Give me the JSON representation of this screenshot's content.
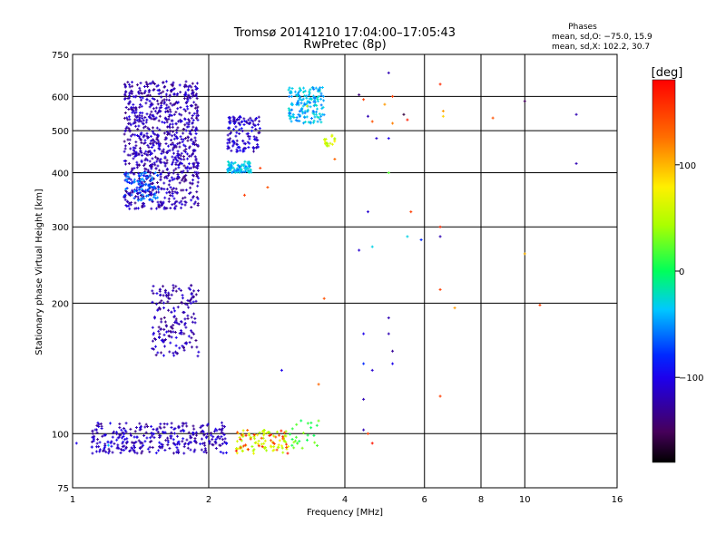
{
  "chart_data": {
    "type": "scatter",
    "title": "Tromsø 20141210 17:04:00–17:05:43",
    "subtitle": "RwPretec (8p)",
    "xlabel": "Frequency [MHz]",
    "ylabel": "Stationary phase Virtual Height [km]",
    "x_scale": "log",
    "y_scale": "log",
    "xlim": [
      1,
      16
    ],
    "ylim": [
      75,
      750
    ],
    "x_ticks": [
      1,
      2,
      4,
      6,
      8,
      10,
      16
    ],
    "y_ticks": [
      75,
      100,
      200,
      300,
      400,
      500,
      600,
      750
    ],
    "grid": true,
    "stats": {
      "title": "Phases",
      "line_o": "mean, sd,O: −75.0, 15.9",
      "line_x": "mean, sd,X: 102.2, 30.7"
    },
    "colorbar": {
      "label": "[deg]",
      "min": -180,
      "max": 180,
      "ticks": [
        100,
        0,
        -100
      ]
    },
    "clusters": [
      {
        "x": [
          1.3,
          1.9
        ],
        "y": [
          330,
          650
        ],
        "phase": -120,
        "n": 900
      },
      {
        "x": [
          1.3,
          1.55
        ],
        "y": [
          345,
          400
        ],
        "phase": -65,
        "n": 80
      },
      {
        "x": [
          2.2,
          2.6
        ],
        "y": [
          445,
          540
        ],
        "phase": -110,
        "n": 130
      },
      {
        "x": [
          2.2,
          2.5
        ],
        "y": [
          400,
          425
        ],
        "phase": -40,
        "n": 80
      },
      {
        "x": [
          3.0,
          3.6
        ],
        "y": [
          520,
          630
        ],
        "phase": -40,
        "n": 160
      },
      {
        "x": [
          3.6,
          3.8
        ],
        "y": [
          460,
          490
        ],
        "phase": 60,
        "n": 20
      },
      {
        "x": [
          1.5,
          1.9
        ],
        "y": [
          150,
          220
        ],
        "phase": -120,
        "n": 180
      },
      {
        "x": [
          1.1,
          2.2
        ],
        "y": [
          90,
          106
        ],
        "phase": -115,
        "n": 320
      },
      {
        "x": [
          2.3,
          3.0
        ],
        "y": [
          90,
          102
        ],
        "phase": 60,
        "n": 80
      },
      {
        "x": [
          2.3,
          3.0
        ],
        "y": [
          90,
          102
        ],
        "phase": 150,
        "n": 30
      },
      {
        "x": [
          3.0,
          3.5
        ],
        "y": [
          92,
          108
        ],
        "phase": 20,
        "n": 25
      }
    ],
    "points": [
      {
        "x": 4.3,
        "y": 605,
        "phase": -140
      },
      {
        "x": 4.4,
        "y": 590,
        "phase": 150
      },
      {
        "x": 4.5,
        "y": 540,
        "phase": -120
      },
      {
        "x": 4.6,
        "y": 525,
        "phase": 140
      },
      {
        "x": 4.7,
        "y": 480,
        "phase": -110
      },
      {
        "x": 4.9,
        "y": 575,
        "phase": 110
      },
      {
        "x": 5.0,
        "y": 680,
        "phase": -120
      },
      {
        "x": 5.0,
        "y": 480,
        "phase": -100
      },
      {
        "x": 5.0,
        "y": 400,
        "phase": 20
      },
      {
        "x": 5.1,
        "y": 600,
        "phase": 150
      },
      {
        "x": 5.1,
        "y": 520,
        "phase": 120
      },
      {
        "x": 5.4,
        "y": 545,
        "phase": -160
      },
      {
        "x": 5.5,
        "y": 530,
        "phase": 165
      },
      {
        "x": 6.5,
        "y": 640,
        "phase": 160
      },
      {
        "x": 6.6,
        "y": 555,
        "phase": 110
      },
      {
        "x": 6.6,
        "y": 540,
        "phase": 90
      },
      {
        "x": 8.5,
        "y": 535,
        "phase": 140
      },
      {
        "x": 10.0,
        "y": 585,
        "phase": -150
      },
      {
        "x": 13.0,
        "y": 545,
        "phase": -120
      },
      {
        "x": 13.0,
        "y": 420,
        "phase": -120
      },
      {
        "x": 3.8,
        "y": 430,
        "phase": 130
      },
      {
        "x": 4.5,
        "y": 325,
        "phase": -110
      },
      {
        "x": 4.3,
        "y": 265,
        "phase": -110
      },
      {
        "x": 4.6,
        "y": 270,
        "phase": -30
      },
      {
        "x": 5.6,
        "y": 325,
        "phase": 150
      },
      {
        "x": 5.5,
        "y": 285,
        "phase": -30
      },
      {
        "x": 5.9,
        "y": 280,
        "phase": -80
      },
      {
        "x": 6.5,
        "y": 300,
        "phase": 160
      },
      {
        "x": 6.5,
        "y": 285,
        "phase": -120
      },
      {
        "x": 6.5,
        "y": 215,
        "phase": 150
      },
      {
        "x": 7.0,
        "y": 195,
        "phase": 110
      },
      {
        "x": 10.0,
        "y": 260,
        "phase": 100
      },
      {
        "x": 10.8,
        "y": 198,
        "phase": 150
      },
      {
        "x": 3.6,
        "y": 205,
        "phase": 140
      },
      {
        "x": 5.0,
        "y": 185,
        "phase": -120
      },
      {
        "x": 5.0,
        "y": 170,
        "phase": -120
      },
      {
        "x": 5.1,
        "y": 155,
        "phase": -130
      },
      {
        "x": 5.1,
        "y": 145,
        "phase": -100
      },
      {
        "x": 4.4,
        "y": 170,
        "phase": -100
      },
      {
        "x": 4.4,
        "y": 145,
        "phase": -80
      },
      {
        "x": 4.6,
        "y": 140,
        "phase": -110
      },
      {
        "x": 2.9,
        "y": 140,
        "phase": -100
      },
      {
        "x": 3.5,
        "y": 130,
        "phase": 130
      },
      {
        "x": 4.4,
        "y": 120,
        "phase": -120
      },
      {
        "x": 6.5,
        "y": 122,
        "phase": 150
      },
      {
        "x": 4.5,
        "y": 100,
        "phase": 150
      },
      {
        "x": 4.6,
        "y": 95,
        "phase": 170
      },
      {
        "x": 4.4,
        "y": 102,
        "phase": -120
      },
      {
        "x": 1.02,
        "y": 95,
        "phase": -100
      },
      {
        "x": 1.2,
        "y": 94,
        "phase": -40
      },
      {
        "x": 2.4,
        "y": 355,
        "phase": 150
      },
      {
        "x": 2.7,
        "y": 370,
        "phase": 140
      },
      {
        "x": 2.6,
        "y": 410,
        "phase": 150
      },
      {
        "x": 3.3,
        "y": 570,
        "phase": 60
      }
    ]
  }
}
